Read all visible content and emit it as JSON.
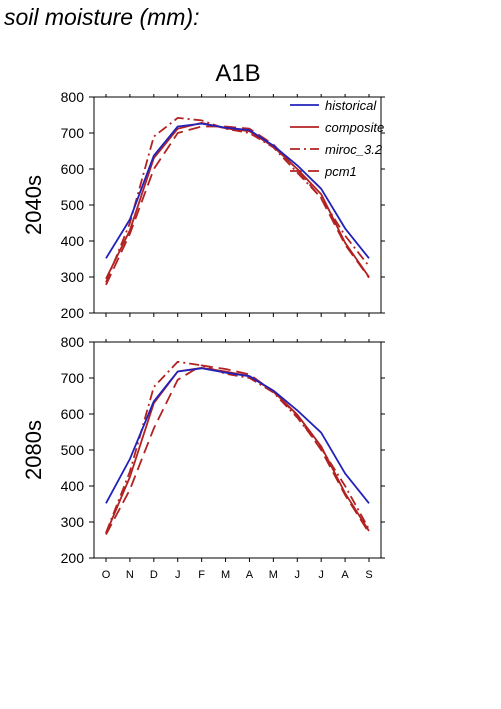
{
  "page_title": "soil moisture (mm):",
  "colors": {
    "historical": "#2222bb",
    "composite": "#b22222",
    "miroc_3.2": "#b22222",
    "pcm1": "#b22222"
  },
  "chart_data": {
    "type": "line",
    "title": "A1B",
    "categories": [
      "O",
      "N",
      "D",
      "J",
      "F",
      "M",
      "A",
      "M",
      "J",
      "J",
      "A",
      "S"
    ],
    "ylim": [
      200,
      800
    ],
    "yticks": [
      200,
      300,
      400,
      500,
      600,
      700,
      800
    ],
    "legend": [
      "historical",
      "composite",
      "miroc_3.2",
      "pcm1"
    ],
    "legend_placement": "top-right",
    "grid": false,
    "panels": [
      {
        "label": "2040s",
        "series": [
          {
            "name": "historical",
            "style": "solid",
            "values": [
              352,
              460,
              637,
              718,
              726,
              715,
              708,
              665,
              610,
              545,
              435,
              352
            ]
          },
          {
            "name": "composite",
            "style": "solid",
            "values": [
              295,
              430,
              630,
              712,
              728,
              713,
              705,
              662,
              600,
              530,
              395,
              300
            ]
          },
          {
            "name": "miroc_3.2",
            "style": "dashdot",
            "values": [
              285,
              450,
              690,
              742,
              735,
              712,
              700,
              660,
              590,
              520,
              415,
              330
            ]
          },
          {
            "name": "pcm1",
            "style": "dashed",
            "values": [
              278,
              420,
              600,
              700,
              718,
              718,
              712,
              668,
              598,
              518,
              390,
              298
            ]
          }
        ]
      },
      {
        "label": "2080s",
        "series": [
          {
            "name": "historical",
            "style": "solid",
            "values": [
              352,
              475,
              635,
              718,
              727,
              715,
              705,
              665,
              610,
              548,
              435,
              352
            ]
          },
          {
            "name": "composite",
            "style": "solid",
            "values": [
              268,
              425,
              630,
              718,
              728,
              718,
              705,
              663,
              598,
              510,
              380,
              275
            ]
          },
          {
            "name": "miroc_3.2",
            "style": "dashdot",
            "values": [
              270,
              440,
              675,
              745,
              735,
              712,
              700,
              660,
              590,
              505,
              400,
              280
            ]
          },
          {
            "name": "pcm1",
            "style": "dashed",
            "values": [
              265,
              390,
              560,
              695,
              735,
              725,
              710,
              662,
              595,
              500,
              375,
              270
            ]
          }
        ]
      }
    ]
  }
}
